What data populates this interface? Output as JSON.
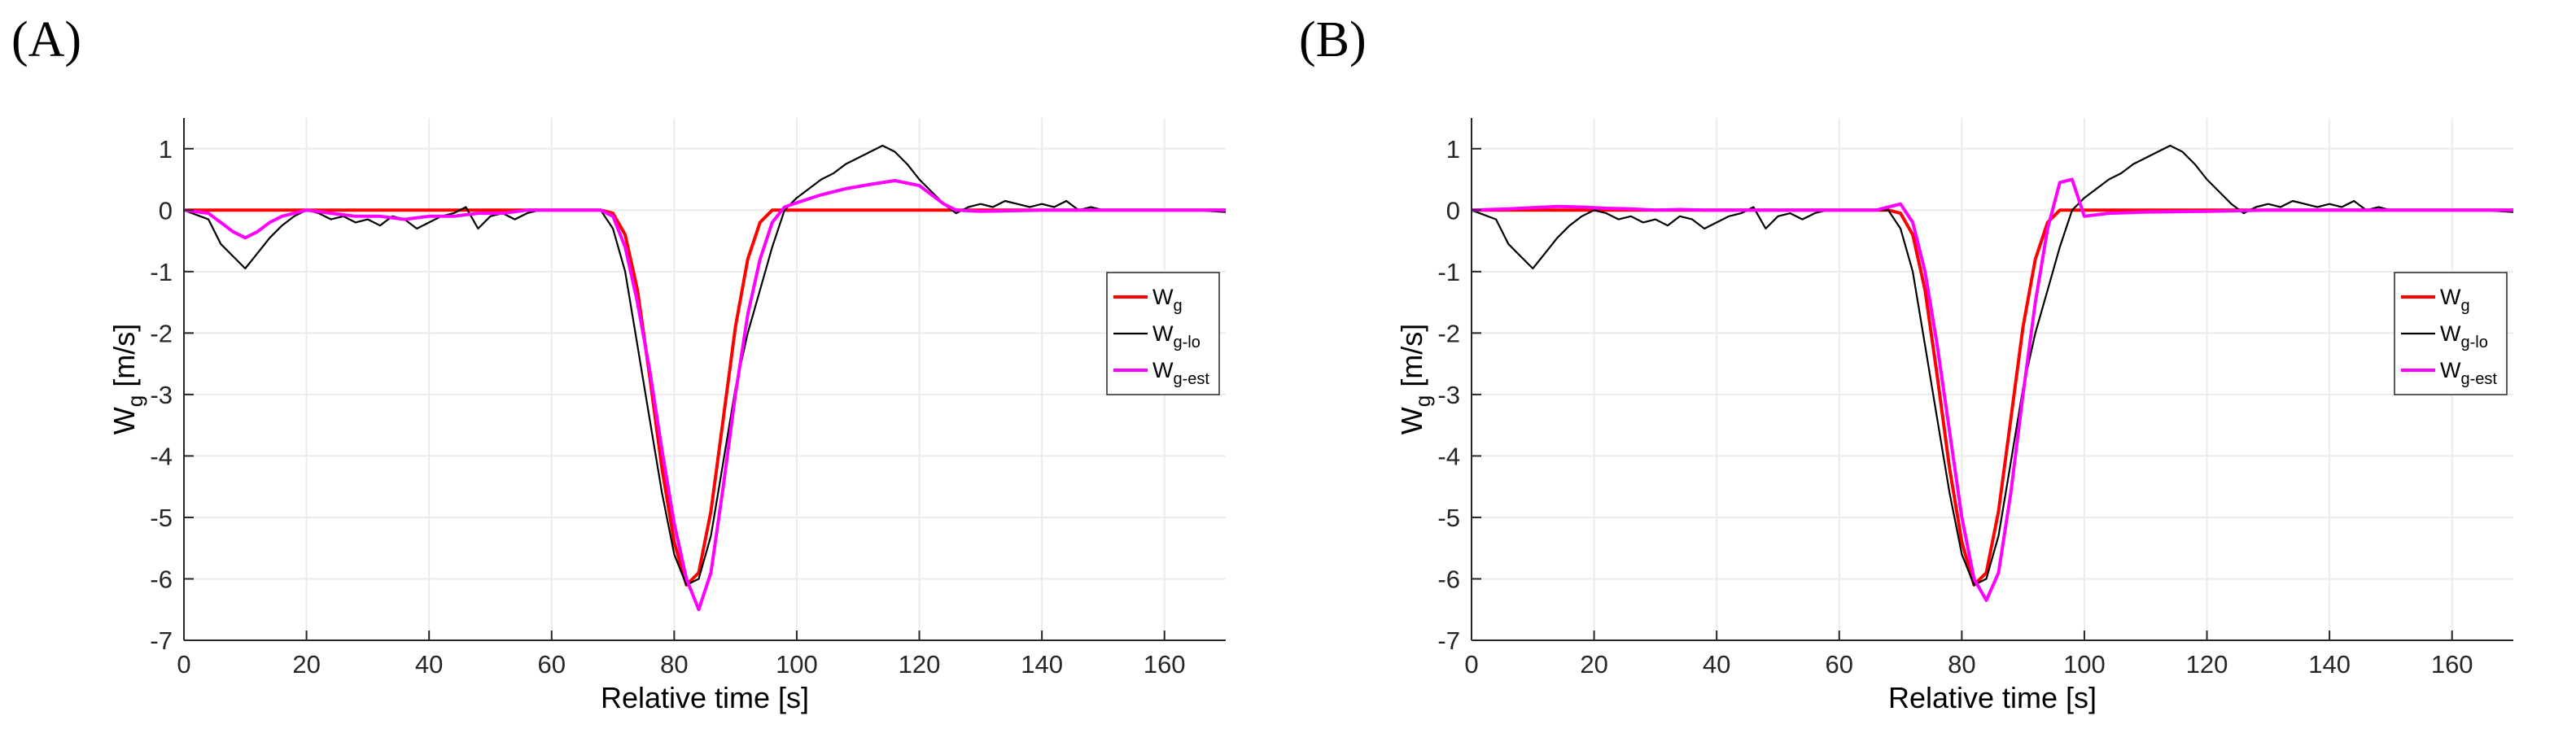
{
  "chart_data": [
    {
      "panel_label": "(A)",
      "type": "line",
      "xlabel": "Relative time [s]",
      "ylabel": {
        "main": "W",
        "sub": "g",
        "unit": " [m/s]"
      },
      "xlim": [
        0,
        170
      ],
      "ylim": [
        -7,
        1.5
      ],
      "xticks": [
        0,
        20,
        40,
        60,
        80,
        100,
        120,
        140,
        160
      ],
      "yticks": [
        1,
        0,
        -1,
        -2,
        -3,
        -4,
        -5,
        -6,
        -7
      ],
      "grid": true,
      "legend_position": "right",
      "series": [
        {
          "name": "W",
          "sub": "g",
          "color": "#ff0000",
          "x": [
            0,
            68,
            70,
            72,
            74,
            76,
            78,
            80,
            82,
            84,
            86,
            88,
            90,
            92,
            94,
            96,
            98,
            170
          ],
          "y": [
            0,
            0,
            -0.05,
            -0.4,
            -1.3,
            -2.7,
            -4.2,
            -5.4,
            -6.1,
            -5.9,
            -4.9,
            -3.4,
            -1.9,
            -0.8,
            -0.2,
            0,
            0,
            0
          ]
        },
        {
          "name": "W",
          "sub": "g-lo",
          "color": "#000000",
          "x": [
            0,
            4,
            6,
            8,
            10,
            12,
            14,
            16,
            18,
            20,
            22,
            24,
            26,
            28,
            30,
            32,
            34,
            36,
            38,
            40,
            42,
            44,
            46,
            48,
            50,
            52,
            54,
            56,
            58,
            60,
            62,
            64,
            66,
            68,
            70,
            72,
            74,
            76,
            78,
            80,
            82,
            84,
            86,
            88,
            90,
            92,
            94,
            96,
            98,
            100,
            102,
            104,
            106,
            108,
            110,
            112,
            114,
            116,
            118,
            120,
            122,
            124,
            126,
            128,
            130,
            132,
            134,
            136,
            138,
            140,
            142,
            144,
            146,
            148,
            150,
            155,
            160,
            165,
            170
          ],
          "y": [
            0,
            -0.15,
            -0.55,
            -0.75,
            -0.95,
            -0.7,
            -0.45,
            -0.25,
            -0.1,
            0,
            -0.05,
            -0.15,
            -0.1,
            -0.2,
            -0.15,
            -0.25,
            -0.1,
            -0.15,
            -0.3,
            -0.2,
            -0.1,
            -0.05,
            0.05,
            -0.3,
            -0.1,
            -0.05,
            -0.15,
            -0.05,
            0,
            0,
            0,
            0,
            0,
            0,
            -0.3,
            -1.0,
            -2.2,
            -3.4,
            -4.6,
            -5.6,
            -6.1,
            -6.0,
            -5.3,
            -4.1,
            -2.9,
            -2.0,
            -1.3,
            -0.6,
            0,
            0.2,
            0.35,
            0.5,
            0.6,
            0.75,
            0.85,
            0.95,
            1.05,
            0.95,
            0.75,
            0.5,
            0.3,
            0.1,
            -0.05,
            0.05,
            0.1,
            0.05,
            0.15,
            0.1,
            0.05,
            0.1,
            0.05,
            0.15,
            0,
            0.05,
            0,
            0,
            0,
            0,
            -0.03
          ]
        },
        {
          "name": "W",
          "sub": "g-est",
          "color": "#ff00ff",
          "x": [
            0,
            4,
            6,
            8,
            10,
            12,
            14,
            16,
            18,
            20,
            24,
            28,
            32,
            36,
            40,
            44,
            48,
            52,
            56,
            60,
            64,
            68,
            70,
            72,
            74,
            76,
            78,
            80,
            82,
            84,
            86,
            88,
            90,
            92,
            94,
            96,
            98,
            100,
            104,
            108,
            112,
            116,
            120,
            122,
            124,
            126,
            130,
            140,
            150,
            160,
            170
          ],
          "y": [
            0,
            -0.05,
            -0.2,
            -0.35,
            -0.45,
            -0.35,
            -0.2,
            -0.1,
            -0.05,
            0,
            -0.05,
            -0.1,
            -0.1,
            -0.15,
            -0.1,
            -0.1,
            -0.05,
            -0.05,
            0,
            0,
            0,
            0,
            -0.1,
            -0.6,
            -1.5,
            -2.6,
            -3.9,
            -5.1,
            -6.0,
            -6.5,
            -5.9,
            -4.5,
            -3.0,
            -1.7,
            -0.8,
            -0.2,
            0.05,
            0.12,
            0.25,
            0.35,
            0.42,
            0.48,
            0.4,
            0.25,
            0.1,
            0,
            -0.02,
            0,
            0,
            0,
            0
          ]
        }
      ]
    },
    {
      "panel_label": "(B)",
      "type": "line",
      "xlabel": "Relative time [s]",
      "ylabel": {
        "main": "W",
        "sub": "g",
        "unit": " [m/s]"
      },
      "xlim": [
        0,
        170
      ],
      "ylim": [
        -7,
        1.5
      ],
      "xticks": [
        0,
        20,
        40,
        60,
        80,
        100,
        120,
        140,
        160
      ],
      "yticks": [
        1,
        0,
        -1,
        -2,
        -3,
        -4,
        -5,
        -6,
        -7
      ],
      "grid": true,
      "legend_position": "right",
      "series": [
        {
          "name": "W",
          "sub": "g",
          "color": "#ff0000",
          "x": [
            0,
            68,
            70,
            72,
            74,
            76,
            78,
            80,
            82,
            84,
            86,
            88,
            90,
            92,
            94,
            96,
            98,
            170
          ],
          "y": [
            0,
            0,
            -0.05,
            -0.4,
            -1.3,
            -2.7,
            -4.2,
            -5.4,
            -6.1,
            -5.9,
            -4.9,
            -3.4,
            -1.9,
            -0.8,
            -0.2,
            0,
            0,
            0
          ]
        },
        {
          "name": "W",
          "sub": "g-lo",
          "color": "#000000",
          "x": [
            0,
            4,
            6,
            8,
            10,
            12,
            14,
            16,
            18,
            20,
            22,
            24,
            26,
            28,
            30,
            32,
            34,
            36,
            38,
            40,
            42,
            44,
            46,
            48,
            50,
            52,
            54,
            56,
            58,
            60,
            62,
            64,
            66,
            68,
            70,
            72,
            74,
            76,
            78,
            80,
            82,
            84,
            86,
            88,
            90,
            92,
            94,
            96,
            98,
            100,
            102,
            104,
            106,
            108,
            110,
            112,
            114,
            116,
            118,
            120,
            122,
            124,
            126,
            128,
            130,
            132,
            134,
            136,
            138,
            140,
            142,
            144,
            146,
            148,
            150,
            155,
            160,
            165,
            170
          ],
          "y": [
            0,
            -0.15,
            -0.55,
            -0.75,
            -0.95,
            -0.7,
            -0.45,
            -0.25,
            -0.1,
            0,
            -0.05,
            -0.15,
            -0.1,
            -0.2,
            -0.15,
            -0.25,
            -0.1,
            -0.15,
            -0.3,
            -0.2,
            -0.1,
            -0.05,
            0.05,
            -0.3,
            -0.1,
            -0.05,
            -0.15,
            -0.05,
            0,
            0,
            0,
            0,
            0,
            0,
            -0.3,
            -1.0,
            -2.2,
            -3.4,
            -4.6,
            -5.6,
            -6.1,
            -6.0,
            -5.3,
            -4.1,
            -2.9,
            -2.0,
            -1.3,
            -0.6,
            0,
            0.2,
            0.35,
            0.5,
            0.6,
            0.75,
            0.85,
            0.95,
            1.05,
            0.95,
            0.75,
            0.5,
            0.3,
            0.1,
            -0.05,
            0.05,
            0.1,
            0.05,
            0.15,
            0.1,
            0.05,
            0.1,
            0.05,
            0.15,
            0,
            0.05,
            0,
            0,
            0,
            0,
            -0.03
          ]
        },
        {
          "name": "W",
          "sub": "g-est",
          "color": "#ff00ff",
          "x": [
            0,
            6,
            10,
            14,
            18,
            22,
            26,
            30,
            34,
            38,
            42,
            46,
            50,
            54,
            58,
            62,
            66,
            68,
            70,
            72,
            74,
            76,
            78,
            80,
            82,
            84,
            86,
            88,
            90,
            92,
            94,
            96,
            98,
            100,
            104,
            110,
            120,
            130,
            140,
            150,
            160,
            170
          ],
          "y": [
            0,
            0.02,
            0.04,
            0.06,
            0.05,
            0.03,
            0.02,
            0,
            0.01,
            0,
            0,
            0,
            0,
            0,
            0,
            0,
            0,
            0.05,
            0.1,
            -0.2,
            -1.0,
            -2.2,
            -3.6,
            -5.0,
            -6.0,
            -6.35,
            -5.9,
            -4.6,
            -3.0,
            -1.5,
            -0.3,
            0.45,
            0.5,
            -0.1,
            -0.05,
            -0.03,
            -0.02,
            0,
            0,
            0,
            0,
            0
          ]
        }
      ]
    }
  ]
}
